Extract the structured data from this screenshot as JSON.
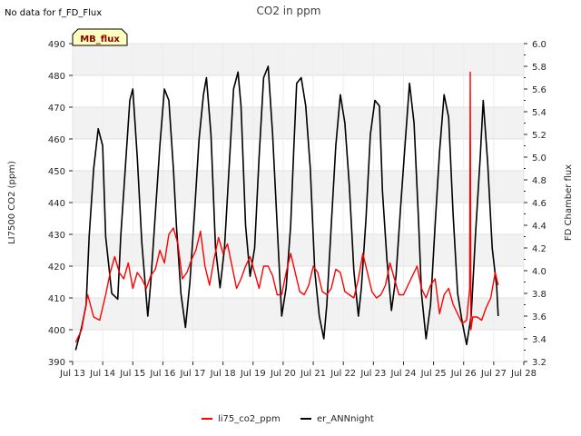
{
  "chart_data": {
    "type": "line",
    "title": "CO2 in ppm",
    "note": "No data for f_FD_Flux",
    "badge": "MB_flux",
    "ylabel": "LI7500 CO2 (ppm)",
    "y2label": "FD Chamber flux",
    "xlabel": "",
    "xlim": [
      13,
      28
    ],
    "ylim": [
      390,
      490
    ],
    "y2lim": [
      3.2,
      6.0
    ],
    "x_ticks": [
      13,
      14,
      15,
      16,
      17,
      18,
      19,
      20,
      21,
      22,
      23,
      24,
      25,
      26,
      27,
      28
    ],
    "x_tick_labels": [
      "Jul 13",
      "Jul 14",
      "Jul 15",
      "Jul 16",
      "Jul 17",
      "Jul 18",
      "Jul 19",
      "Jul 20",
      "Jul 21",
      "Jul 22",
      "Jul 23",
      "Jul 24",
      "Jul 25",
      "Jul 26",
      "Jul 27",
      "Jul 28"
    ],
    "y_ticks": [
      390,
      400,
      410,
      420,
      430,
      440,
      450,
      460,
      470,
      480,
      490
    ],
    "y_tick_labels": [
      "390",
      "400",
      "410",
      "420",
      "430",
      "440",
      "450",
      "460",
      "470",
      "480",
      "490"
    ],
    "y2_ticks": [
      3.2,
      3.4,
      3.6,
      3.8,
      4.0,
      4.2,
      4.4,
      4.6,
      4.8,
      5.0,
      5.2,
      5.4,
      5.6,
      5.8,
      6.0
    ],
    "y2_tick_labels": [
      "3.2",
      "3.4",
      "3.6",
      "3.8",
      "4.0",
      "4.2",
      "4.4",
      "4.6",
      "4.8",
      "5.0",
      "5.2",
      "5.4",
      "5.6",
      "5.8",
      "6.0"
    ],
    "series": [
      {
        "name": "li75_co2_ppm",
        "color": "#ff0000",
        "x": [
          13.1,
          13.3,
          13.5,
          13.7,
          13.9,
          14.1,
          14.25,
          14.4,
          14.55,
          14.7,
          14.85,
          15.0,
          15.15,
          15.3,
          15.45,
          15.6,
          15.75,
          15.9,
          16.05,
          16.2,
          16.35,
          16.5,
          16.65,
          16.8,
          16.95,
          17.1,
          17.25,
          17.4,
          17.55,
          17.7,
          17.85,
          18.0,
          18.15,
          18.3,
          18.45,
          18.6,
          18.75,
          18.9,
          19.05,
          19.2,
          19.35,
          19.5,
          19.65,
          19.8,
          19.95,
          20.1,
          20.25,
          20.4,
          20.55,
          20.7,
          20.85,
          21.0,
          21.15,
          21.3,
          21.45,
          21.6,
          21.75,
          21.9,
          22.05,
          22.2,
          22.35,
          22.5,
          22.65,
          22.8,
          22.95,
          23.1,
          23.25,
          23.4,
          23.55,
          23.7,
          23.85,
          24.0,
          24.15,
          24.3,
          24.45,
          24.6,
          24.75,
          24.9,
          25.05,
          25.2,
          25.35,
          25.5,
          25.65,
          25.8,
          25.95,
          26.1,
          26.2,
          26.22,
          26.24,
          26.3,
          26.45,
          26.6,
          26.75,
          26.9,
          27.05,
          27.15
        ],
        "values": [
          396,
          400,
          411,
          404,
          403,
          411,
          418,
          423,
          418,
          416,
          421,
          413,
          418,
          416,
          413,
          417,
          419,
          425,
          421,
          430,
          432,
          427,
          416,
          418,
          422,
          425,
          431,
          420,
          414,
          422,
          429,
          424,
          427,
          420,
          413,
          416,
          420,
          423,
          418,
          413,
          420,
          420,
          417,
          411,
          411,
          418,
          424,
          418,
          412,
          411,
          414,
          420,
          418,
          412,
          411,
          413,
          419,
          418,
          412,
          411,
          410,
          416,
          424,
          418,
          412,
          410,
          411,
          414,
          421,
          416,
          411,
          411,
          414,
          417,
          420,
          413,
          410,
          414,
          416,
          405,
          411,
          413,
          408,
          405,
          402,
          403,
          413,
          481,
          400,
          404,
          404,
          403,
          407,
          410,
          418,
          414
        ]
      },
      {
        "name": "er_ANNnight",
        "color": "#000000",
        "x": [
          13.1,
          13.3,
          13.45,
          13.55,
          13.7,
          13.85,
          14.0,
          14.1,
          14.3,
          14.5,
          14.6,
          14.75,
          14.9,
          15.0,
          15.15,
          15.3,
          15.5,
          15.6,
          15.75,
          15.9,
          16.05,
          16.2,
          16.35,
          16.45,
          16.6,
          16.75,
          16.9,
          17.05,
          17.2,
          17.35,
          17.45,
          17.6,
          17.75,
          17.9,
          18.05,
          18.2,
          18.35,
          18.5,
          18.6,
          18.75,
          18.9,
          19.05,
          19.2,
          19.35,
          19.5,
          19.65,
          19.8,
          19.95,
          20.1,
          20.25,
          20.35,
          20.45,
          20.6,
          20.75,
          20.9,
          21.05,
          21.2,
          21.35,
          21.45,
          21.6,
          21.75,
          21.9,
          22.05,
          22.2,
          22.35,
          22.5,
          22.6,
          22.75,
          22.9,
          23.05,
          23.2,
          23.3,
          23.45,
          23.6,
          23.75,
          23.9,
          24.05,
          24.2,
          24.35,
          24.5,
          24.6,
          24.75,
          24.9,
          25.05,
          25.2,
          25.35,
          25.5,
          25.65,
          25.8,
          25.95,
          26.1,
          26.25,
          26.4,
          26.55,
          26.65,
          26.8,
          26.95,
          27.1,
          27.15
        ],
        "values": [
          3.3,
          3.5,
          3.7,
          4.3,
          4.9,
          5.25,
          5.1,
          4.3,
          3.8,
          3.75,
          4.3,
          4.9,
          5.5,
          5.6,
          5.0,
          4.25,
          3.6,
          3.9,
          4.5,
          5.1,
          5.6,
          5.5,
          4.9,
          4.4,
          3.8,
          3.5,
          3.9,
          4.5,
          5.15,
          5.55,
          5.7,
          5.2,
          4.2,
          3.85,
          4.2,
          4.9,
          5.6,
          5.75,
          5.45,
          4.4,
          3.95,
          4.2,
          5.0,
          5.7,
          5.8,
          5.2,
          4.4,
          3.6,
          3.85,
          4.4,
          5.05,
          5.65,
          5.7,
          5.45,
          4.9,
          4.0,
          3.6,
          3.4,
          3.7,
          4.4,
          5.1,
          5.55,
          5.3,
          4.75,
          4.0,
          3.6,
          3.85,
          4.45,
          5.2,
          5.5,
          5.45,
          4.7,
          4.1,
          3.65,
          3.95,
          4.55,
          5.1,
          5.65,
          5.3,
          4.45,
          3.8,
          3.4,
          3.7,
          4.4,
          5.05,
          5.55,
          5.35,
          4.5,
          3.8,
          3.55,
          3.35,
          3.6,
          4.35,
          5.0,
          5.5,
          4.95,
          4.2,
          3.85,
          3.6
        ]
      }
    ],
    "legend": [
      {
        "label": "li75_co2_ppm",
        "color": "#ff0000"
      },
      {
        "label": "er_ANNnight",
        "color": "#000000"
      }
    ]
  }
}
